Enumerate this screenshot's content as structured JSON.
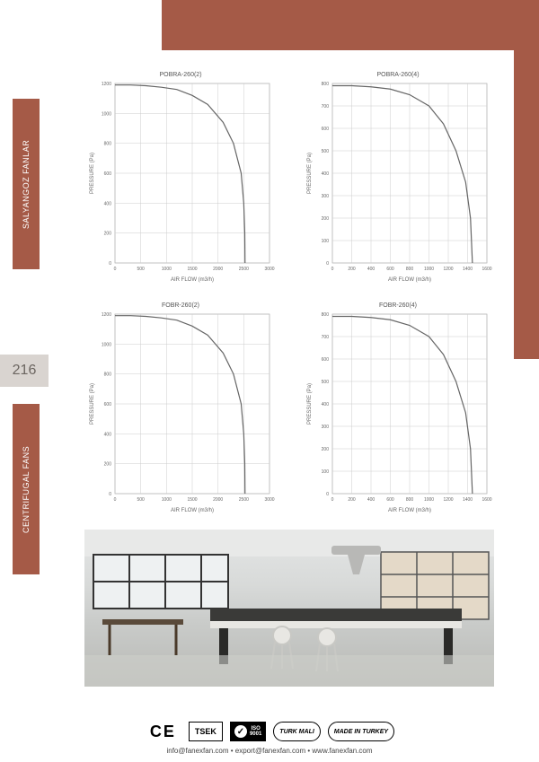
{
  "decor": {
    "brand_color": "#a55a47"
  },
  "sidebar": {
    "tab_top": "SALYANGOZ FANLAR",
    "tab_bottom": "CENTRIFUGAL FANS",
    "page_number": "216"
  },
  "charts": {
    "common": {
      "xlabel": "AIR FLOW (m3/h)",
      "ylabel": "PRESSURE (Pa)",
      "label_fontsize": 6,
      "tick_fontsize": 5,
      "line_color": "#666666",
      "grid_color": "#cccccc",
      "background_color": "#ffffff",
      "title_fontsize": 7
    },
    "items": [
      {
        "title": "POBRA-260(2)",
        "xlim": [
          0,
          3000
        ],
        "xtick_step": 500,
        "ylim": [
          0,
          1200
        ],
        "ytick_step": 200,
        "curve": [
          [
            0,
            1190
          ],
          [
            300,
            1190
          ],
          [
            600,
            1185
          ],
          [
            900,
            1175
          ],
          [
            1200,
            1160
          ],
          [
            1500,
            1120
          ],
          [
            1800,
            1060
          ],
          [
            2100,
            940
          ],
          [
            2300,
            800
          ],
          [
            2450,
            600
          ],
          [
            2500,
            400
          ],
          [
            2520,
            200
          ],
          [
            2525,
            0
          ]
        ]
      },
      {
        "title": "POBRA-260(4)",
        "xlim": [
          0,
          1600
        ],
        "xtick_step": 200,
        "ylim": [
          0,
          800
        ],
        "ytick_step": 100,
        "curve": [
          [
            0,
            790
          ],
          [
            200,
            790
          ],
          [
            400,
            785
          ],
          [
            600,
            775
          ],
          [
            800,
            750
          ],
          [
            1000,
            700
          ],
          [
            1150,
            620
          ],
          [
            1280,
            500
          ],
          [
            1380,
            360
          ],
          [
            1430,
            200
          ],
          [
            1450,
            0
          ]
        ]
      },
      {
        "title": "FOBR-260(2)",
        "xlim": [
          0,
          3000
        ],
        "xtick_step": 500,
        "ylim": [
          0,
          1200
        ],
        "ytick_step": 200,
        "curve": [
          [
            0,
            1190
          ],
          [
            300,
            1190
          ],
          [
            600,
            1185
          ],
          [
            900,
            1175
          ],
          [
            1200,
            1160
          ],
          [
            1500,
            1120
          ],
          [
            1800,
            1060
          ],
          [
            2100,
            940
          ],
          [
            2300,
            800
          ],
          [
            2450,
            600
          ],
          [
            2500,
            400
          ],
          [
            2520,
            200
          ],
          [
            2525,
            0
          ]
        ]
      },
      {
        "title": "FOBR-260(4)",
        "xlim": [
          0,
          1600
        ],
        "xtick_step": 200,
        "ylim": [
          0,
          800
        ],
        "ytick_step": 100,
        "curve": [
          [
            0,
            790
          ],
          [
            200,
            790
          ],
          [
            400,
            785
          ],
          [
            600,
            775
          ],
          [
            800,
            750
          ],
          [
            1000,
            700
          ],
          [
            1150,
            620
          ],
          [
            1280,
            500
          ],
          [
            1380,
            360
          ],
          [
            1430,
            200
          ],
          [
            1450,
            0
          ]
        ]
      }
    ]
  },
  "certs": {
    "ce": "CE",
    "tsek": "TSEK",
    "iso": "ISO\n9001",
    "turkmali": "TURK MALI",
    "madeinturkey": "MADE IN TURKEY"
  },
  "contact": "info@fanexfan.com • export@fanexfan.com • www.fanexfan.com"
}
